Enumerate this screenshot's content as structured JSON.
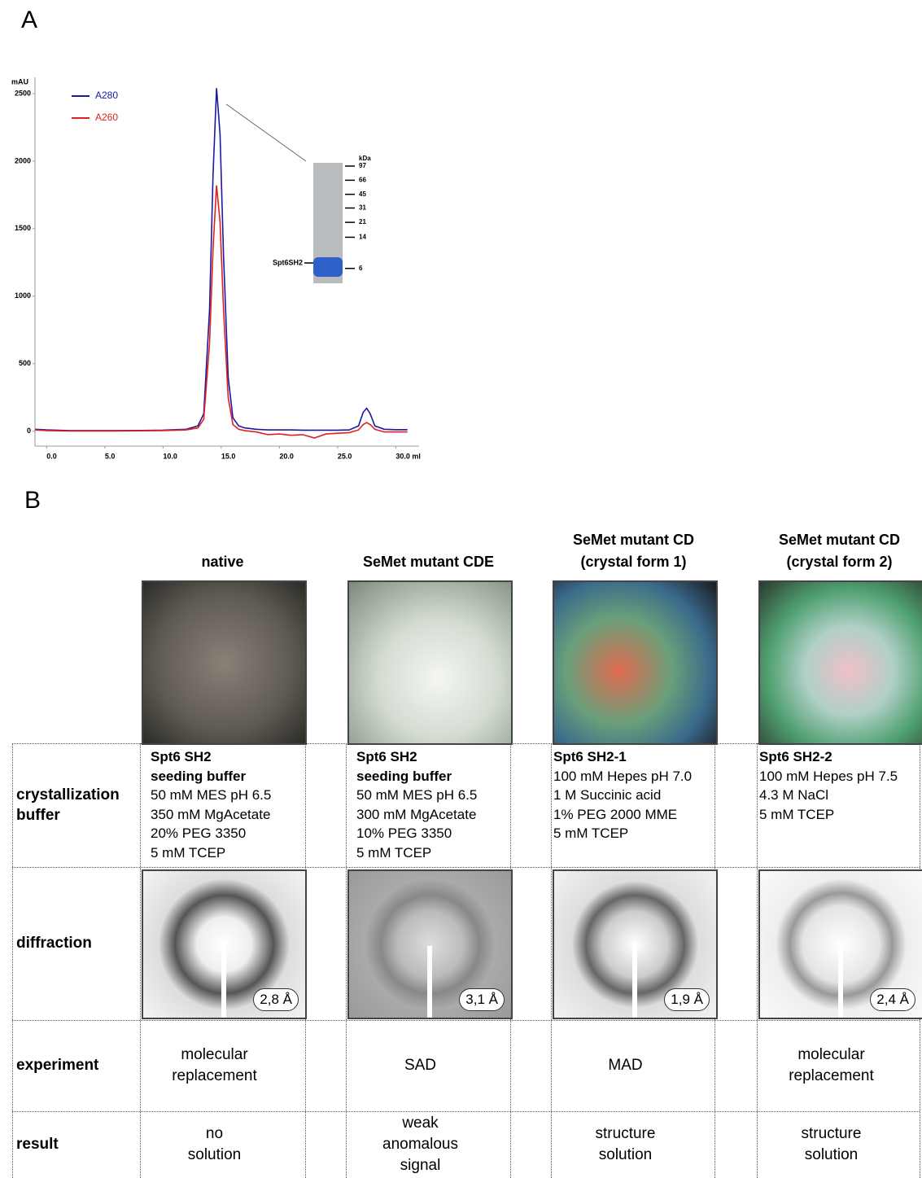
{
  "panel_labels": [
    "A",
    "B"
  ],
  "chart_data": {
    "type": "line",
    "y_label": "mAU",
    "x": [
      -1,
      0,
      2,
      4,
      6,
      8,
      10,
      12,
      13,
      13.5,
      14,
      14.3,
      14.6,
      14.9,
      15.2,
      15.6,
      16,
      16.5,
      17,
      18,
      19,
      20,
      21,
      22,
      23,
      24,
      25,
      26,
      26.8,
      27.2,
      27.5,
      27.8,
      28.2,
      29,
      30,
      31
    ],
    "series": [
      {
        "name": "A280",
        "color": "#1a1aa0",
        "values": [
          15,
          10,
          5,
          5,
          5,
          6,
          8,
          15,
          40,
          130,
          900,
          1900,
          2540,
          2200,
          1300,
          400,
          100,
          40,
          25,
          15,
          10,
          10,
          10,
          8,
          8,
          8,
          8,
          10,
          40,
          140,
          170,
          130,
          40,
          15,
          12,
          12
        ]
      },
      {
        "name": "A260",
        "color": "#e02020",
        "values": [
          10,
          5,
          2,
          2,
          2,
          3,
          5,
          10,
          25,
          90,
          650,
          1350,
          1820,
          1550,
          900,
          250,
          50,
          15,
          5,
          -5,
          -25,
          -20,
          -30,
          -25,
          -50,
          -20,
          -15,
          -10,
          10,
          50,
          65,
          50,
          15,
          -5,
          -5,
          -5
        ]
      }
    ],
    "xlim": [
      -1,
      32
    ],
    "ylim": [
      -110,
      2620
    ],
    "xticks": [
      {
        "value": 0,
        "label": "0.0"
      },
      {
        "value": 5,
        "label": "5.0"
      },
      {
        "value": 10,
        "label": "10.0"
      },
      {
        "value": 15,
        "label": "15.0"
      },
      {
        "value": 20,
        "label": "20.0"
      },
      {
        "value": 25,
        "label": "25.0"
      },
      {
        "value": 30,
        "label": "30.0 ml"
      }
    ],
    "yticks": [
      0,
      500,
      1000,
      1500,
      2000,
      2500
    ],
    "legend": "upper-left",
    "inset": {
      "unit": "kDa",
      "markers": [
        97,
        66,
        45,
        31,
        21,
        14,
        6
      ],
      "band_label": "Spt6SH2"
    }
  },
  "table": {
    "columns": [
      [
        "native"
      ],
      [
        "SeMet mutant CDE"
      ],
      [
        "SeMet mutant CD",
        "(crystal form 1)"
      ],
      [
        "SeMet mutant CD",
        "(crystal form 2)"
      ]
    ],
    "rows": [
      {
        "label": [
          "crystallization",
          "buffer"
        ],
        "cells": [
          {
            "bold": [
              "Spt6 SH2",
              "seeding buffer"
            ],
            "lines": [
              "50 mM MES pH 6.5",
              "350 mM MgAcetate",
              "20% PEG 3350",
              "5 mM TCEP"
            ]
          },
          {
            "bold": [
              "Spt6 SH2",
              "seeding buffer"
            ],
            "lines": [
              "50 mM MES pH 6.5",
              "300 mM MgAcetate",
              "10% PEG 3350",
              "5 mM TCEP"
            ]
          },
          {
            "bold": [
              "Spt6 SH2-1"
            ],
            "lines": [
              "100 mM Hepes pH 7.0",
              "1 M Succinic acid",
              "1% PEG 2000 MME",
              "5 mM TCEP"
            ]
          },
          {
            "bold": [
              "Spt6 SH2-2"
            ],
            "lines": [
              "100 mM Hepes pH 7.5",
              "4.3 M NaCl",
              "5 mM TCEP"
            ]
          }
        ]
      },
      {
        "label": [
          "diffraction"
        ],
        "cells": [
          "2,8 Å",
          "3,1 Å",
          "1,9 Å",
          "2,4 Å"
        ]
      },
      {
        "label": [
          "experiment"
        ],
        "cells": [
          [
            "molecular",
            "replacement"
          ],
          [
            "SAD"
          ],
          [
            "MAD"
          ],
          [
            "molecular",
            "replacement"
          ]
        ]
      },
      {
        "label": [
          "result"
        ],
        "cells": [
          [
            "no",
            "solution"
          ],
          [
            "weak",
            "anomalous",
            "signal"
          ],
          [
            "structure",
            "solution"
          ],
          [
            "structure",
            "solution"
          ]
        ]
      }
    ]
  }
}
